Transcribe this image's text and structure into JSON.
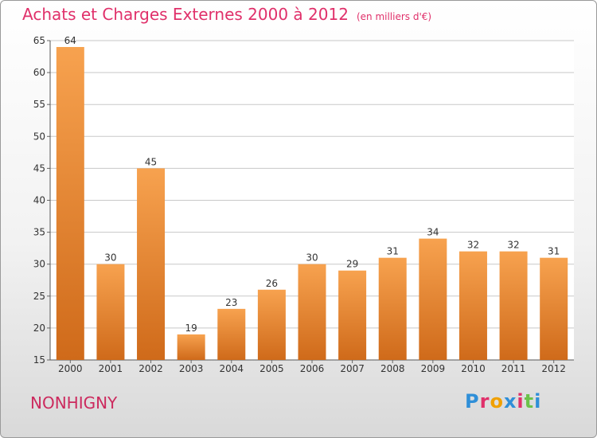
{
  "header": {
    "title": "Achats et Charges Externes 2000 à 2012",
    "subtitle": "(en milliers d'€)"
  },
  "footer": {
    "commune": "NONHIGNY",
    "logo": "Proxiti",
    "logo_colors": [
      "#2f8fd8",
      "#e0306a",
      "#f0a000",
      "#2f8fd8",
      "#e0306a",
      "#6cc24a",
      "#2f8fd8"
    ]
  },
  "colors": {
    "bar_top": "#f7a24f",
    "bar_bottom": "#cf6a1a",
    "accent": "#e0306a"
  },
  "chart_data": {
    "type": "bar",
    "title": "Achats et Charges Externes 2000 à 2012",
    "subtitle": "(en milliers d'€)",
    "categories": [
      "2000",
      "2001",
      "2002",
      "2003",
      "2004",
      "2005",
      "2006",
      "2007",
      "2008",
      "2009",
      "2010",
      "2011",
      "2012"
    ],
    "values": [
      64,
      30,
      45,
      19,
      23,
      26,
      30,
      29,
      31,
      34,
      32,
      32,
      31
    ],
    "ylim": [
      15,
      65
    ],
    "yticks": [
      15,
      20,
      25,
      30,
      35,
      40,
      45,
      50,
      55,
      60,
      65
    ],
    "grid": true,
    "xlabel": "",
    "ylabel": ""
  }
}
